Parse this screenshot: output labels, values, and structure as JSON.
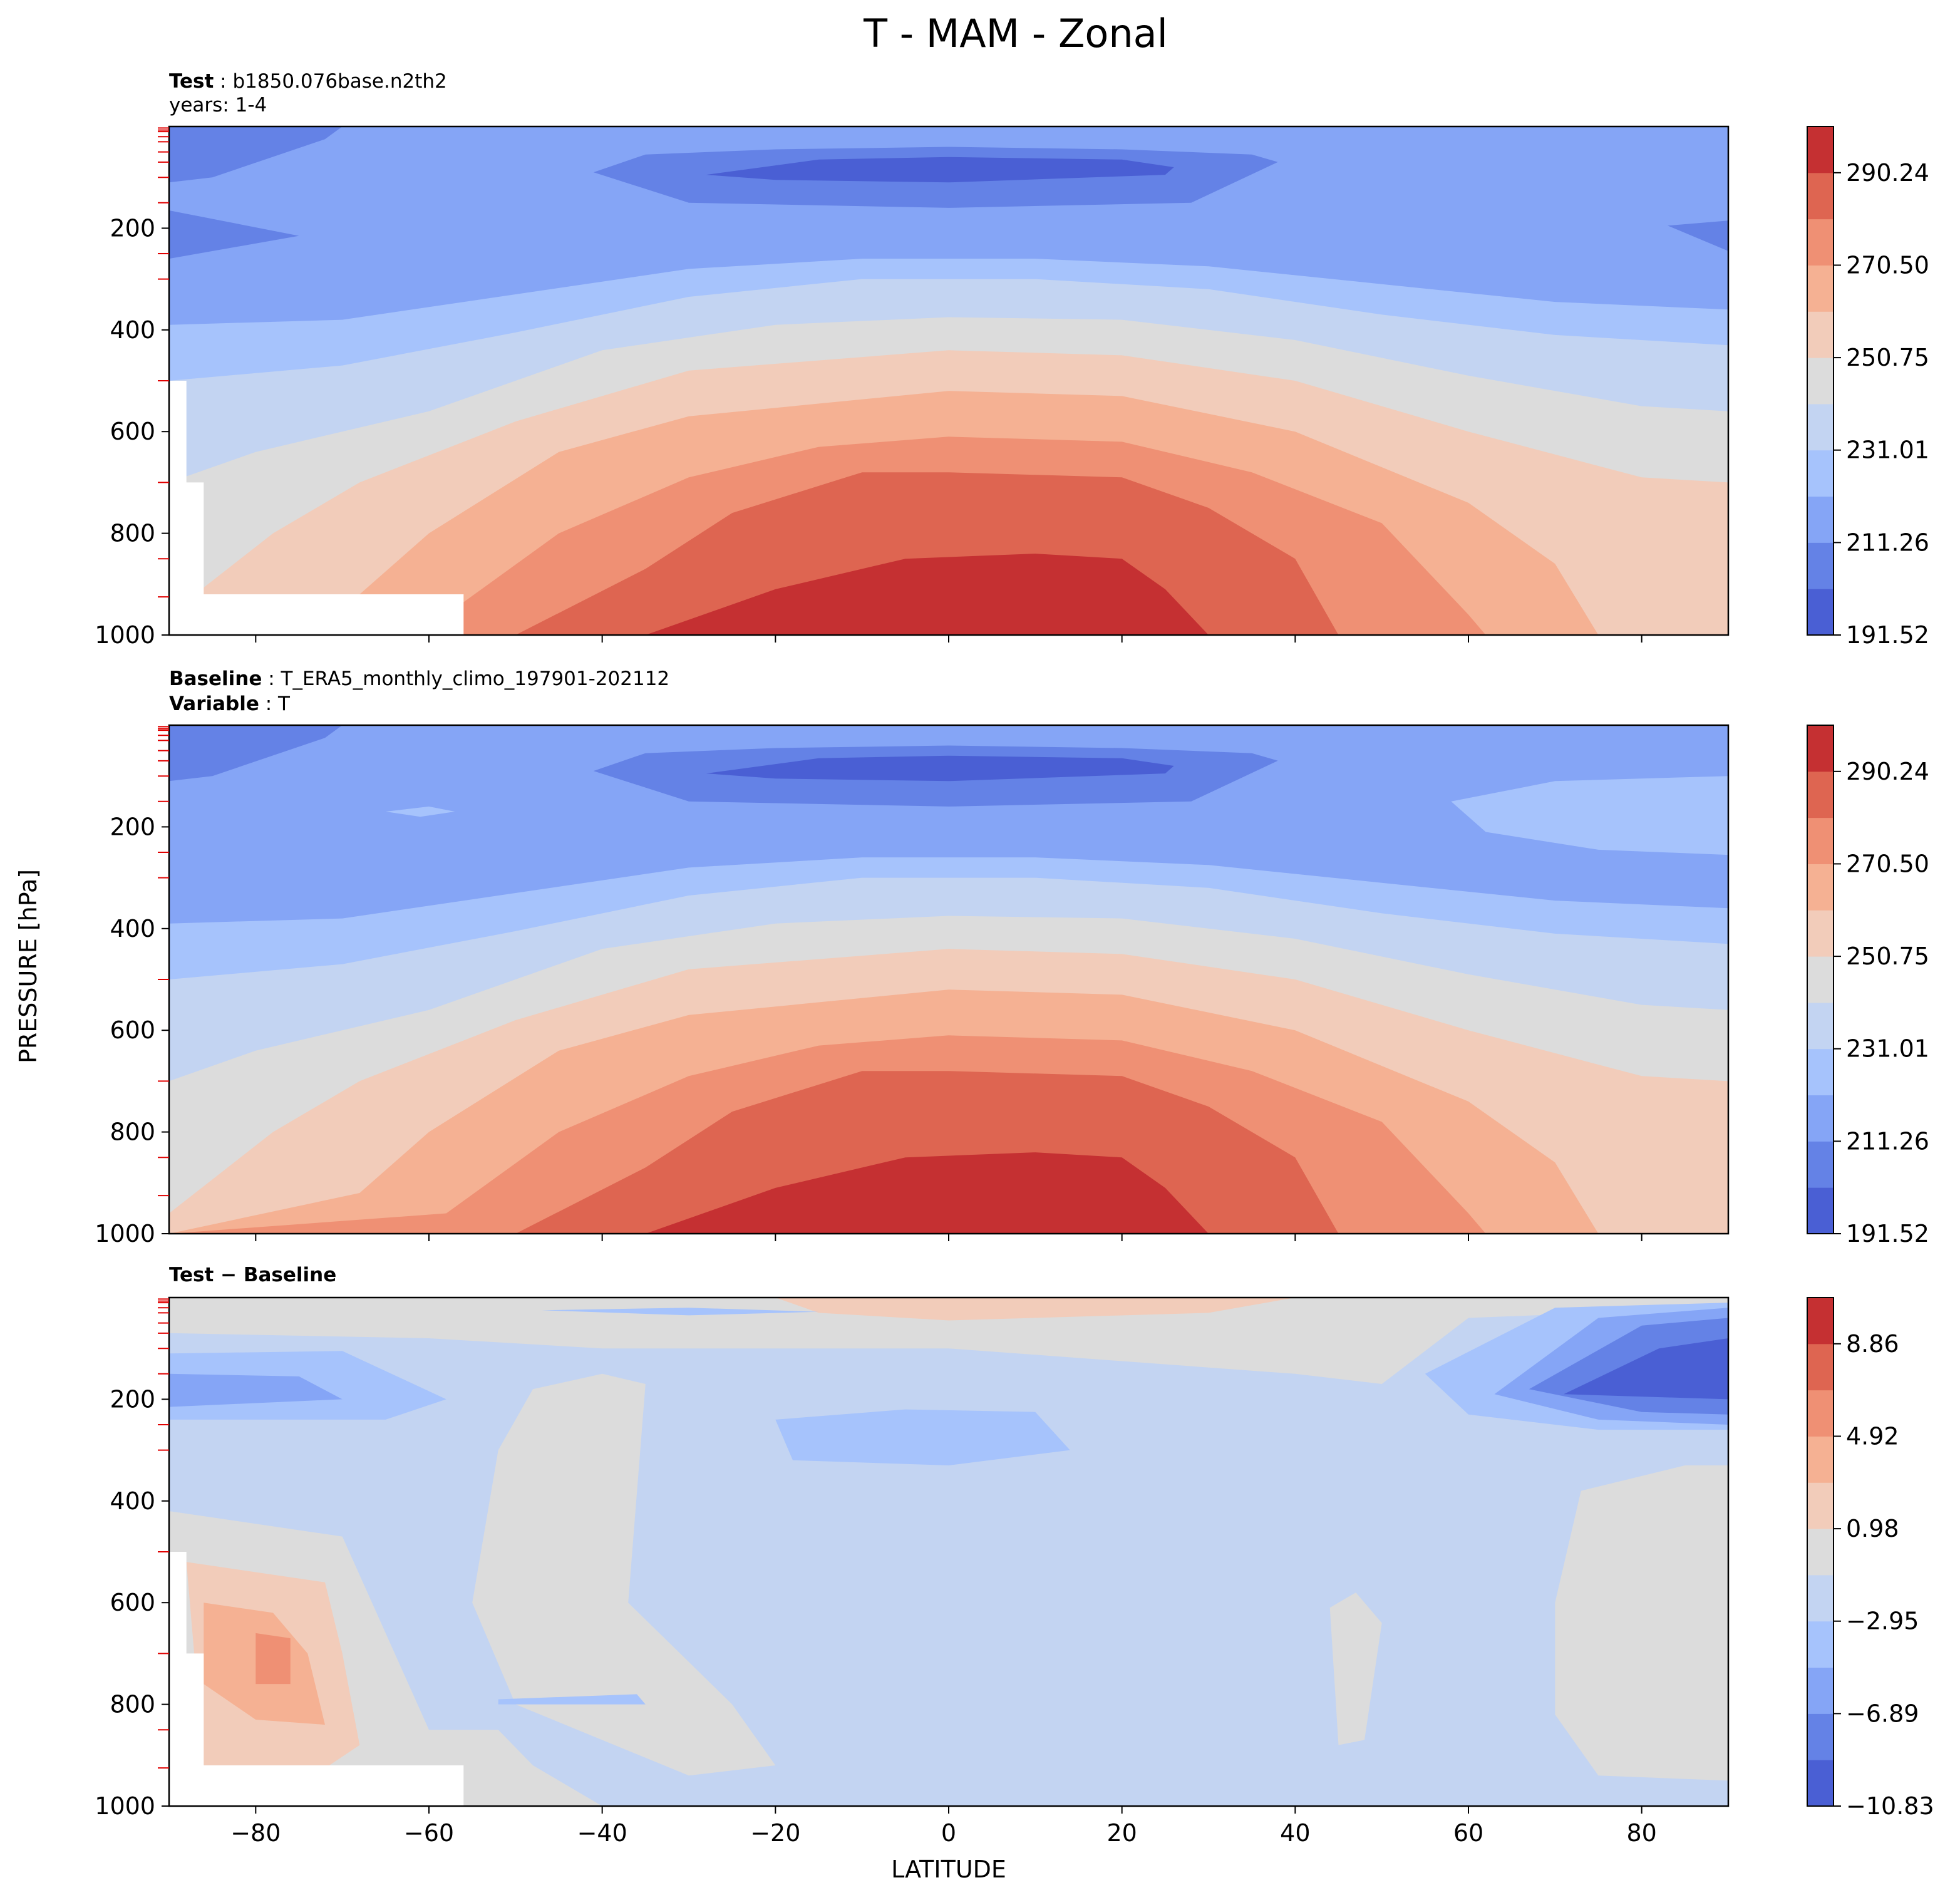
{
  "figure": {
    "title": "T - MAM - Zonal",
    "xlabel": "LATITUDE",
    "ylabel": "PRESSURE [hPa]"
  },
  "palette": {
    "levels": [
      "#4a5fd4",
      "#6482e6",
      "#85a5f6",
      "#a6c3fc",
      "#c3d4f2",
      "#dcdcdc",
      "#f2ccba",
      "#f5b193",
      "#ef9074",
      "#de6551",
      "#c53032"
    ],
    "missing": "#ffffff"
  },
  "panels": [
    {
      "id": "test",
      "header": [
        {
          "bold": "Test",
          "sep": " : ",
          "text": "b1850.076base.n2th2"
        },
        {
          "bold": "",
          "sep": "",
          "text": "years: 1-4"
        }
      ],
      "cbar_ticks": [
        "290.24",
        "270.50",
        "250.75",
        "231.01",
        "211.26",
        "191.52"
      ]
    },
    {
      "id": "baseline",
      "header": [
        {
          "bold": "Baseline",
          "sep": " : ",
          "text": "T_ERA5_monthly_climo_197901-202112"
        },
        {
          "bold": "Variable",
          "sep": " : ",
          "text": "T"
        }
      ],
      "cbar_ticks": [
        "290.24",
        "270.50",
        "250.75",
        "231.01",
        "211.26",
        "191.52"
      ]
    },
    {
      "id": "diff",
      "header": [
        {
          "bold": "Test − Baseline",
          "sep": "",
          "text": ""
        }
      ],
      "cbar_ticks": [
        "8.86",
        "4.92",
        "0.98",
        "−2.95",
        "−6.89",
        "−10.83"
      ]
    }
  ],
  "chart_data": {
    "type": "contourf",
    "x_ticks": [
      "−80",
      "−60",
      "−40",
      "−20",
      "0",
      "20",
      "40",
      "60",
      "80"
    ],
    "y_ticks": [
      "200",
      "400",
      "600",
      "800",
      "1000"
    ],
    "xlim": [
      -90,
      90
    ],
    "ylim": [
      1000,
      0
    ],
    "series": [
      {
        "name": "Test",
        "levels_min": 191.52,
        "levels_max": 300.11,
        "n_levels": 11,
        "colorbar_ticks": [
          191.52,
          211.26,
          231.01,
          250.75,
          270.5,
          290.24
        ]
      },
      {
        "name": "Baseline",
        "levels_min": 191.52,
        "levels_max": 300.11,
        "n_levels": 11,
        "colorbar_ticks": [
          191.52,
          211.26,
          231.01,
          250.75,
          270.5,
          290.24
        ]
      },
      {
        "name": "Test − Baseline",
        "levels_min": -10.83,
        "levels_max": 10.83,
        "n_levels": 11,
        "colorbar_ticks": [
          -10.83,
          -6.89,
          -2.95,
          0.98,
          4.92,
          8.86
        ]
      }
    ]
  }
}
